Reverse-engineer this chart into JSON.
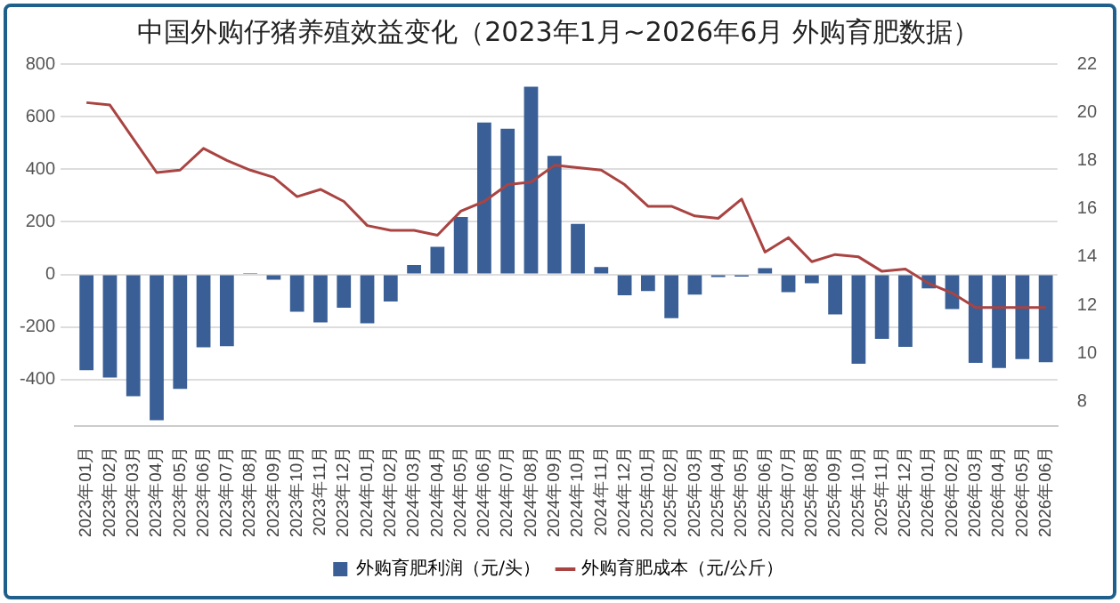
{
  "chart_data": {
    "type": "bar",
    "title": "中国外购仔猪养殖效益变化（2023年1月~2026年6月 外购育肥数据）",
    "categories": [
      "2023年01月",
      "2023年02月",
      "2023年03月",
      "2023年04月",
      "2023年05月",
      "2023年06月",
      "2023年07月",
      "2023年08月",
      "2023年09月",
      "2023年10月",
      "2023年11月",
      "2023年12月",
      "2024年01月",
      "2024年02月",
      "2024年03月",
      "2024年04月",
      "2024年05月",
      "2024年06月",
      "2024年07月",
      "2024年08月",
      "2024年09月",
      "2024年10月",
      "2024年11月",
      "2024年12月",
      "2025年01月",
      "2025年02月",
      "2025年03月",
      "2025年04月",
      "2025年05月",
      "2025年06月",
      "2025年07月",
      "2025年08月",
      "2025年09月",
      "2025年10月",
      "2025年11月",
      "2025年12月",
      "2026年01月",
      "2026年02月",
      "2026年03月",
      "2026年04月",
      "2026年05月",
      "2026年06月"
    ],
    "series": [
      {
        "name": "外购育肥利润（元/头）",
        "type": "bar",
        "color": "#3a5f96",
        "values": [
          -364,
          -392,
          -463,
          -554,
          -435,
          -277,
          -273,
          5,
          -20,
          -142,
          -182,
          -127,
          -186,
          -103,
          36,
          105,
          218,
          578,
          554,
          714,
          451,
          192,
          28,
          -79,
          -63,
          -166,
          -77,
          -10,
          -8,
          24,
          -67,
          -34,
          -152,
          -340,
          -245,
          -275,
          -53,
          -132,
          -336,
          -356,
          -322,
          -334
        ]
      },
      {
        "name": "外购育肥成本（元/公斤）",
        "type": "line",
        "axis": "y2",
        "color": "#a94442",
        "values": [
          20.4,
          20.3,
          18.9,
          17.5,
          17.6,
          18.5,
          18.0,
          17.6,
          17.3,
          16.5,
          16.8,
          16.3,
          15.3,
          15.1,
          15.1,
          14.9,
          15.9,
          16.3,
          17.0,
          17.1,
          17.8,
          17.7,
          17.6,
          17.0,
          16.1,
          16.1,
          15.7,
          15.6,
          16.4,
          14.2,
          14.8,
          13.8,
          14.1,
          14.0,
          13.4,
          13.5,
          12.9,
          12.5,
          11.9,
          11.9,
          11.9,
          11.9
        ]
      }
    ],
    "ylim": [
      -575,
      800
    ],
    "yticks": [
      -400,
      -200,
      0,
      200,
      400,
      600,
      800
    ],
    "y2lim": [
      7,
      22
    ],
    "y2ticks": [
      8,
      10,
      12,
      14,
      16,
      18,
      20,
      22
    ],
    "grid": "y",
    "legend": "bottom",
    "marker": "none"
  }
}
